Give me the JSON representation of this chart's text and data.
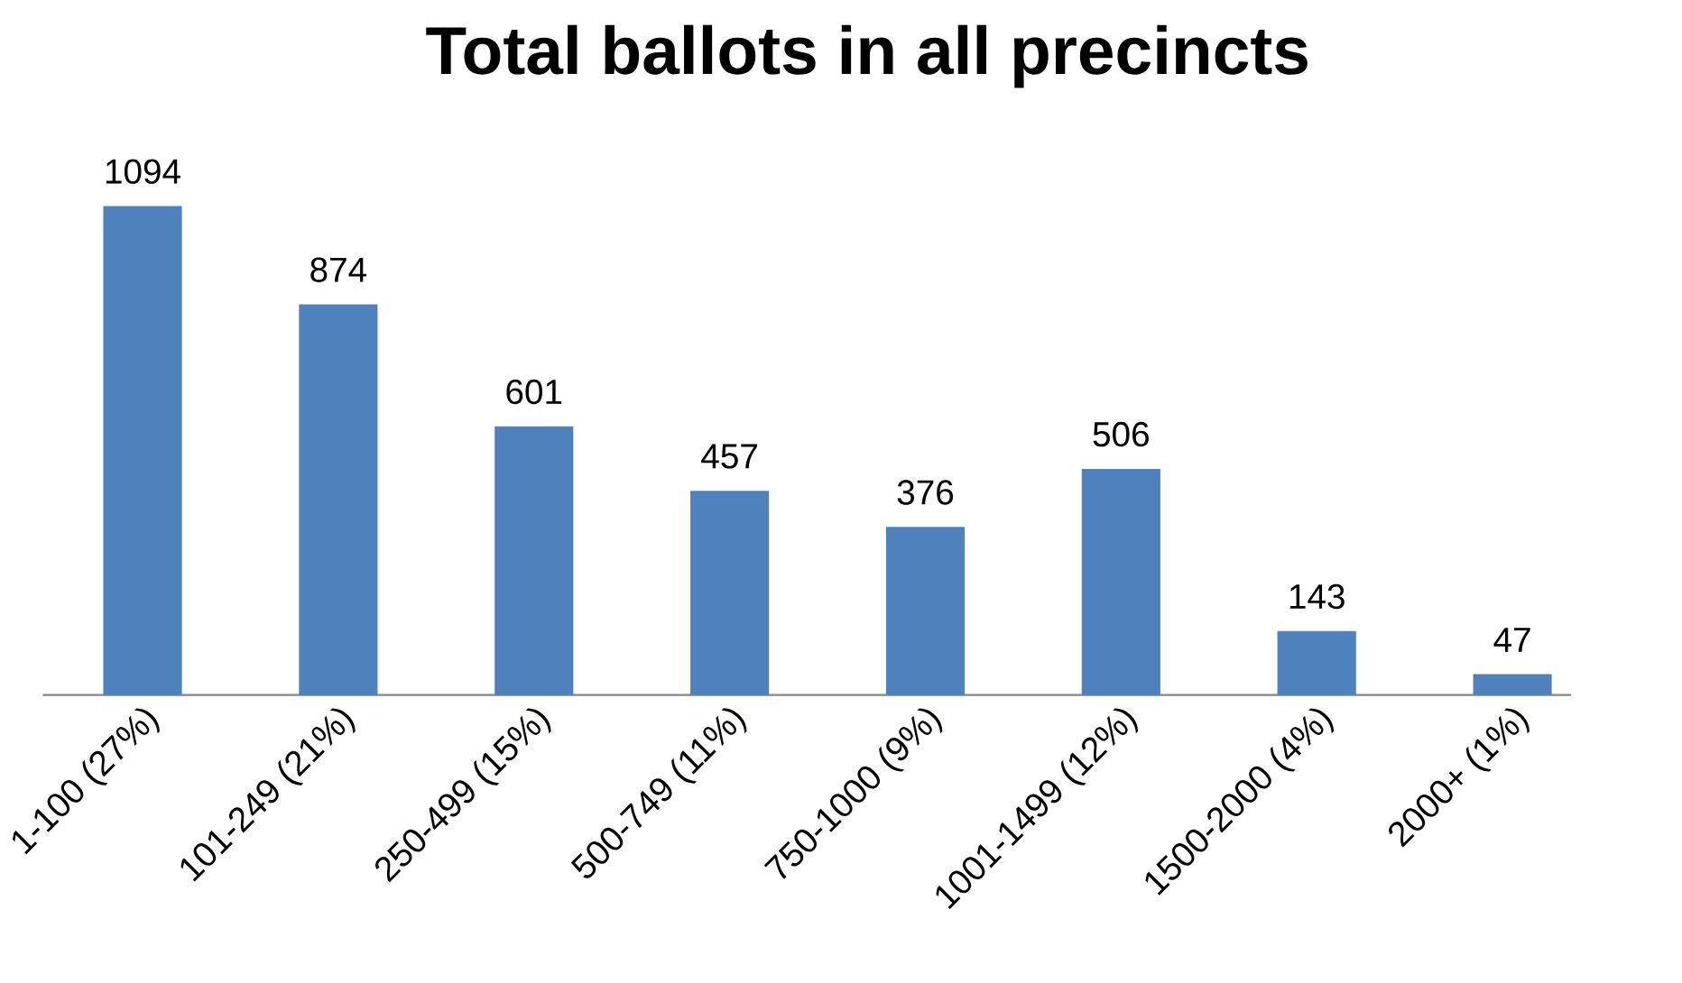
{
  "chart_data": {
    "type": "bar",
    "title": "Total ballots in all precincts",
    "categories": [
      "1-100 (27%)",
      "101-249 (21%)",
      "250-499 (15%)",
      "500-749 (11%)",
      "750-1000 (9%)",
      "1001-1499 (12%)",
      "1500-2000 (4%)",
      "2000+ (1%)"
    ],
    "values": [
      1094,
      874,
      601,
      457,
      376,
      506,
      143,
      47
    ],
    "color": "#4f81bd",
    "data_labels": true
  }
}
